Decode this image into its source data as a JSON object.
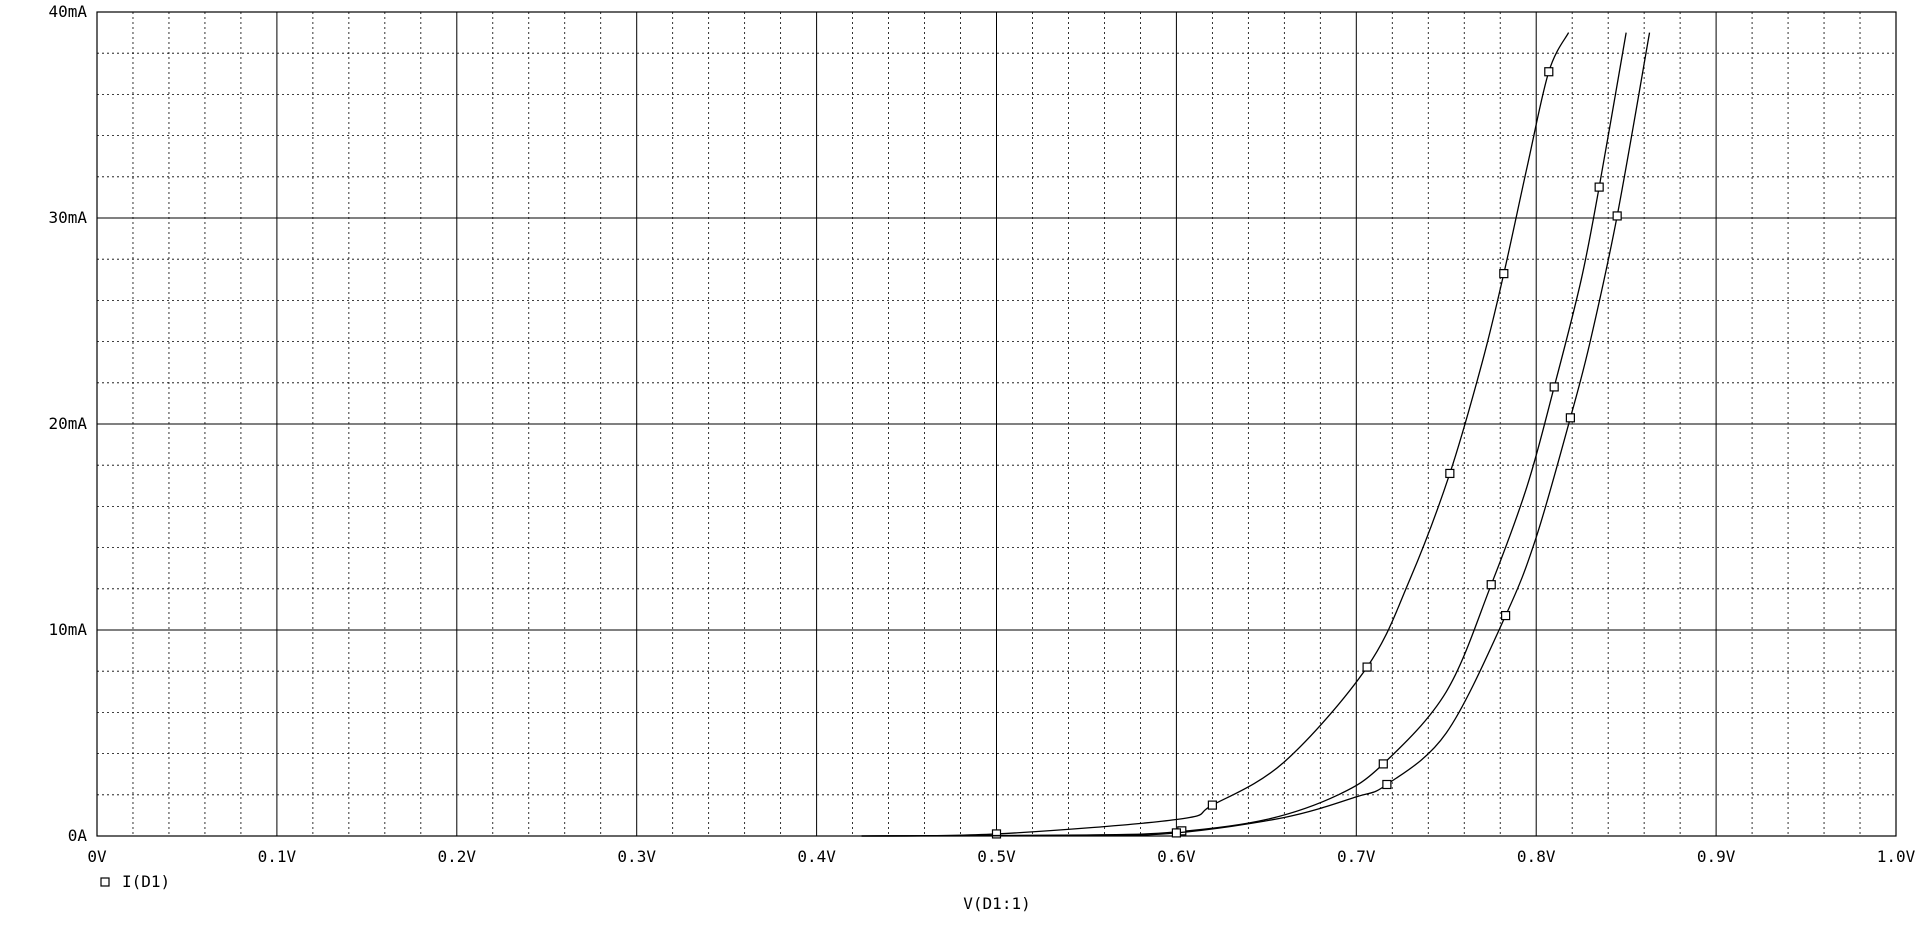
{
  "chart_data": {
    "type": "line",
    "title": "",
    "xlabel": "V(D1:1)",
    "ylabel": "",
    "xlim": [
      0,
      1.0
    ],
    "ylim": [
      0,
      40
    ],
    "x_ticks": [
      "0V",
      "0.1V",
      "0.2V",
      "0.3V",
      "0.4V",
      "0.5V",
      "0.6V",
      "0.7V",
      "0.8V",
      "0.9V",
      "1.0V"
    ],
    "y_ticks": [
      "0A",
      "10mA",
      "20mA",
      "30mA",
      "40mA"
    ],
    "grid": true,
    "legend": {
      "position": "bottom-left",
      "marker": "square",
      "label": "I(D1)"
    },
    "series": [
      {
        "name": "",
        "x": [
          0.425,
          0.5,
          0.6,
          0.62,
          0.66,
          0.706,
          0.73,
          0.752,
          0.77,
          0.782,
          0.795,
          0.807,
          0.818
        ],
        "y": [
          0,
          0.1,
          0.8,
          1.5,
          3.6,
          8.2,
          12.5,
          17.6,
          23.0,
          27.3,
          32.5,
          37.1,
          39.0
        ],
        "markers": [
          [
            0.5,
            0.1
          ],
          [
            0.62,
            1.5
          ],
          [
            0.706,
            8.2
          ],
          [
            0.752,
            17.6
          ],
          [
            0.782,
            27.3
          ],
          [
            0.807,
            37.1
          ]
        ]
      },
      {
        "name": "",
        "x": [
          0.425,
          0.55,
          0.6,
          0.65,
          0.69,
          0.715,
          0.75,
          0.775,
          0.795,
          0.81,
          0.825,
          0.835,
          0.85
        ],
        "y": [
          0,
          0.05,
          0.2,
          0.8,
          2.0,
          3.5,
          7.0,
          12.2,
          17.0,
          21.8,
          27.0,
          31.5,
          39.0
        ],
        "markers": [
          [
            0.603,
            0.25
          ],
          [
            0.715,
            3.5
          ],
          [
            0.775,
            12.2
          ],
          [
            0.81,
            21.8
          ],
          [
            0.835,
            31.5
          ]
        ]
      },
      {
        "name": "",
        "x": [
          0.425,
          0.55,
          0.6,
          0.66,
          0.7,
          0.717,
          0.75,
          0.783,
          0.8,
          0.819,
          0.83,
          0.845,
          0.863
        ],
        "y": [
          0,
          0.03,
          0.15,
          0.9,
          1.9,
          2.5,
          5.0,
          10.7,
          14.5,
          20.3,
          24.0,
          30.1,
          39.0
        ],
        "markers": [
          [
            0.6,
            0.15
          ],
          [
            0.717,
            2.5
          ],
          [
            0.783,
            10.7
          ],
          [
            0.819,
            20.3
          ],
          [
            0.845,
            30.1
          ]
        ]
      }
    ]
  },
  "colors": {
    "line": "#000000",
    "grid_major": "#000000",
    "grid_minor": "#000000"
  }
}
